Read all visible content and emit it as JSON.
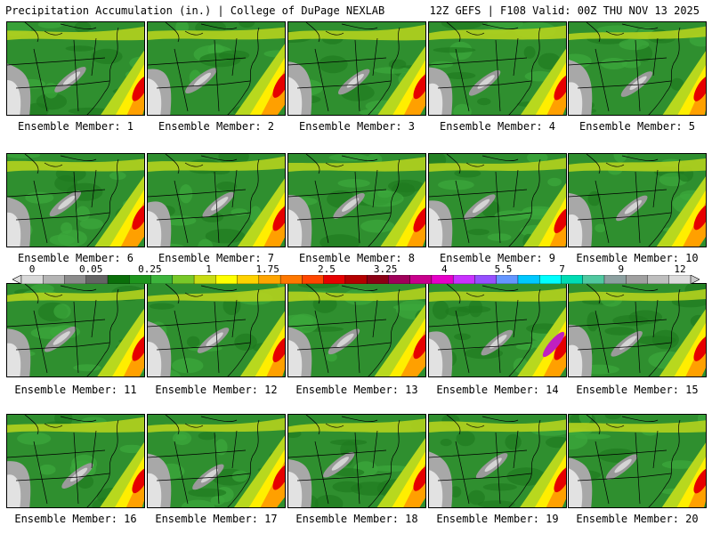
{
  "header": {
    "left": "Precipitation Accumulation (in.) | College of DuPage NEXLAB",
    "right": "12Z GEFS | F108 Valid: 00Z THU NOV 13 2025"
  },
  "legend": {
    "tick_labels": [
      "0",
      "0.05",
      "0.25",
      "1",
      "1.75",
      "2.5",
      "3.25",
      "4",
      "5.5",
      "7",
      "9",
      "12"
    ],
    "colors": [
      "#d8d8d8",
      "#b4b4b4",
      "#8c8c8c",
      "#646464",
      "#0a6e0a",
      "#1e961e",
      "#3cb43c",
      "#78c828",
      "#c8dc14",
      "#ffff00",
      "#ffd200",
      "#ffa500",
      "#ff7800",
      "#ff4600",
      "#e60000",
      "#b40000",
      "#8c0014",
      "#a0005a",
      "#c8008c",
      "#e600c8",
      "#c832ff",
      "#9650ff",
      "#6496ff",
      "#00c8ff",
      "#00ffff",
      "#00dcb4",
      "#50c8a0",
      "#8ca0a0",
      "#a0a0a0",
      "#bebebe",
      "#dcdcdc"
    ]
  },
  "panels": [
    {
      "caption": "Ensemble Member: 1"
    },
    {
      "caption": "Ensemble Member: 2"
    },
    {
      "caption": "Ensemble Member: 3"
    },
    {
      "caption": "Ensemble Member: 4"
    },
    {
      "caption": "Ensemble Member: 5"
    },
    {
      "caption": "Ensemble Member: 6"
    },
    {
      "caption": "Ensemble Member: 7"
    },
    {
      "caption": "Ensemble Member: 8"
    },
    {
      "caption": "Ensemble Member: 9"
    },
    {
      "caption": "Ensemble Member: 10"
    },
    {
      "caption": "Ensemble Member: 11"
    },
    {
      "caption": "Ensemble Member: 12"
    },
    {
      "caption": "Ensemble Member: 13"
    },
    {
      "caption": "Ensemble Member: 14"
    },
    {
      "caption": "Ensemble Member: 15"
    },
    {
      "caption": "Ensemble Member: 16"
    },
    {
      "caption": "Ensemble Member: 17"
    },
    {
      "caption": "Ensemble Member: 18"
    },
    {
      "caption": "Ensemble Member: 19"
    },
    {
      "caption": "Ensemble Member: 20"
    }
  ]
}
